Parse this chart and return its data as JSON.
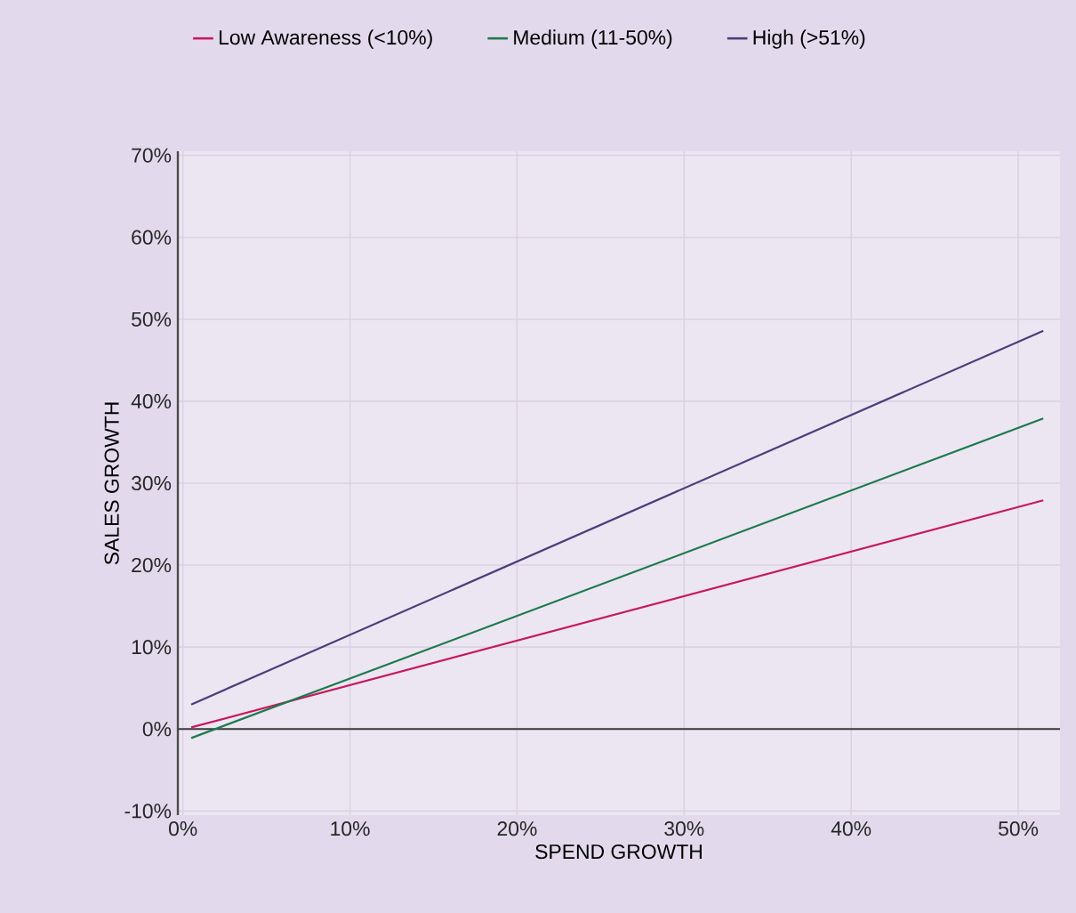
{
  "chart_data": {
    "type": "line",
    "xlabel": "SPEND GROWTH",
    "ylabel": "SALES GROWTH",
    "xlim": [
      -0.3,
      52.5
    ],
    "ylim": [
      -10.5,
      70.5
    ],
    "xticks": [
      {
        "value": 0,
        "label": "0%"
      },
      {
        "value": 10,
        "label": "10%"
      },
      {
        "value": 20,
        "label": "20%"
      },
      {
        "value": 30,
        "label": "30%"
      },
      {
        "value": 40,
        "label": "40%"
      },
      {
        "value": 50,
        "label": "50%"
      }
    ],
    "yticks": [
      {
        "value": -10,
        "label": "-10%"
      },
      {
        "value": 0,
        "label": "0%"
      },
      {
        "value": 10,
        "label": "10%"
      },
      {
        "value": 20,
        "label": "20%"
      },
      {
        "value": 30,
        "label": "30%"
      },
      {
        "value": 40,
        "label": "40%"
      },
      {
        "value": 50,
        "label": "50%"
      },
      {
        "value": 60,
        "label": "60%"
      },
      {
        "value": 70,
        "label": "70%"
      }
    ],
    "x": [
      0.5,
      51.5
    ],
    "series": [
      {
        "name": "Low Awareness (<10%)",
        "color": "#c8175d",
        "values": [
          0.2,
          27.9
        ]
      },
      {
        "name": "Medium (11-50%)",
        "color": "#1e7a4c",
        "values": [
          -1.1,
          37.9
        ]
      },
      {
        "name": "High (>51%)",
        "color": "#4b3d7a",
        "values": [
          3.0,
          48.6
        ]
      }
    ],
    "ref_lines": [
      {
        "axis": "y",
        "value": 0,
        "color": "#3a3a3a"
      }
    ],
    "grid": true,
    "legend": "top",
    "marker": "none",
    "line_style": "solid"
  }
}
